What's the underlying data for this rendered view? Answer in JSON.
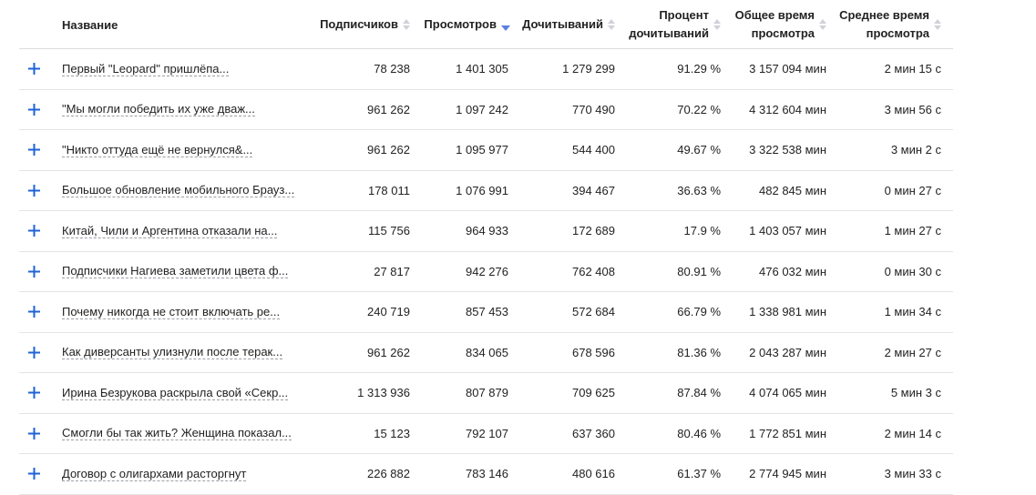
{
  "columns": {
    "name": "Название",
    "subscribers": "Подписчиков",
    "views": "Просмотров",
    "reads": "Дочитываний",
    "read_pct_line1": "Процент",
    "read_pct_line2": "дочитываний",
    "total_time_line1": "Общее время",
    "total_time_line2": "просмотра",
    "avg_time_line1": "Среднее время",
    "avg_time_line2": "просмотра"
  },
  "sort_active_color": "#5b7fe0",
  "plus_color": "#1e63d6",
  "rows": [
    {
      "title": "Первый \"Leopard\" пришлёпа...",
      "subscribers": "78 238",
      "views": "1 401 305",
      "reads": "1 279 299",
      "read_pct": "91.29 %",
      "total_time": "3 157 094 мин",
      "avg_time": "2 мин 15 с"
    },
    {
      "title": "\"Мы могли победить их уже дваж...",
      "subscribers": "961 262",
      "views": "1 097 242",
      "reads": "770 490",
      "read_pct": "70.22 %",
      "total_time": "4 312 604 мин",
      "avg_time": "3 мин 56 с"
    },
    {
      "title": "\"Никто оттуда ещё не вернулся&...",
      "subscribers": "961 262",
      "views": "1 095 977",
      "reads": "544 400",
      "read_pct": "49.67 %",
      "total_time": "3 322 538 мин",
      "avg_time": "3 мин 2 с"
    },
    {
      "title": "Большое обновление мобильного Брауз...",
      "subscribers": "178 011",
      "views": "1 076 991",
      "reads": "394 467",
      "read_pct": "36.63 %",
      "total_time": "482 845 мин",
      "avg_time": "0 мин 27 с"
    },
    {
      "title": "Китай, Чили и Аргентина отказали на...",
      "subscribers": "115 756",
      "views": "964 933",
      "reads": "172 689",
      "read_pct": "17.9 %",
      "total_time": "1 403 057 мин",
      "avg_time": "1 мин 27 с"
    },
    {
      "title": "Подписчики Нагиева заметили цвета ф...",
      "subscribers": "27 817",
      "views": "942 276",
      "reads": "762 408",
      "read_pct": "80.91 %",
      "total_time": "476 032 мин",
      "avg_time": "0 мин 30 с"
    },
    {
      "title": "Почему никогда не стоит включать ре...",
      "subscribers": "240 719",
      "views": "857 453",
      "reads": "572 684",
      "read_pct": "66.79 %",
      "total_time": "1 338 981 мин",
      "avg_time": "1 мин 34 с"
    },
    {
      "title": "Как диверсанты улизнули после терак...",
      "subscribers": "961 262",
      "views": "834 065",
      "reads": "678 596",
      "read_pct": "81.36 %",
      "total_time": "2 043 287 мин",
      "avg_time": "2 мин 27 с"
    },
    {
      "title": "Ирина Безрукова раскрыла свой «Секр...",
      "subscribers": "1 313 936",
      "views": "807 879",
      "reads": "709 625",
      "read_pct": "87.84 %",
      "total_time": "4 074 065 мин",
      "avg_time": "5 мин 3 с"
    },
    {
      "title": "Смогли бы так жить? Женщина показал...",
      "subscribers": "15 123",
      "views": "792 107",
      "reads": "637 360",
      "read_pct": "80.46 %",
      "total_time": "1 772 851 мин",
      "avg_time": "2 мин 14 с"
    },
    {
      "title": "Договор с олигархами расторгнут",
      "subscribers": "226 882",
      "views": "783 146",
      "reads": "480 616",
      "read_pct": "61.37 %",
      "total_time": "2 774 945 мин",
      "avg_time": "3 мин 33 с"
    }
  ]
}
